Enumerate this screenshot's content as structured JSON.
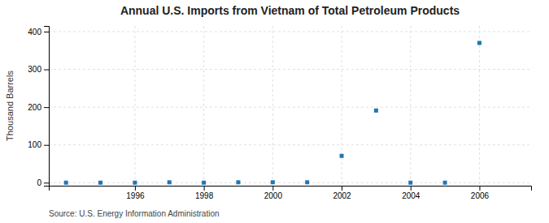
{
  "chart_data": {
    "type": "scatter",
    "title": "Annual U.S. Imports from Vietnam of Total Petroleum Products",
    "ylabel": "Thousand Barrels",
    "annotations": [
      "Source: U.S. Energy Information Administration"
    ],
    "x": [
      1994,
      1995,
      1996,
      1997,
      1998,
      1999,
      2000,
      2001,
      2002,
      2003,
      2004,
      2005,
      2006
    ],
    "values": [
      0,
      0,
      0,
      1,
      0,
      1,
      1,
      1,
      71,
      191,
      0,
      0,
      370
    ],
    "marker": "square",
    "xlim": [
      1993.5,
      2007.5
    ],
    "ylim": [
      -8,
      415
    ],
    "xticks": [
      1996,
      1998,
      2000,
      2002,
      2004,
      2006
    ],
    "yticks": [
      0,
      100,
      200,
      300,
      400
    ],
    "grid": true
  }
}
